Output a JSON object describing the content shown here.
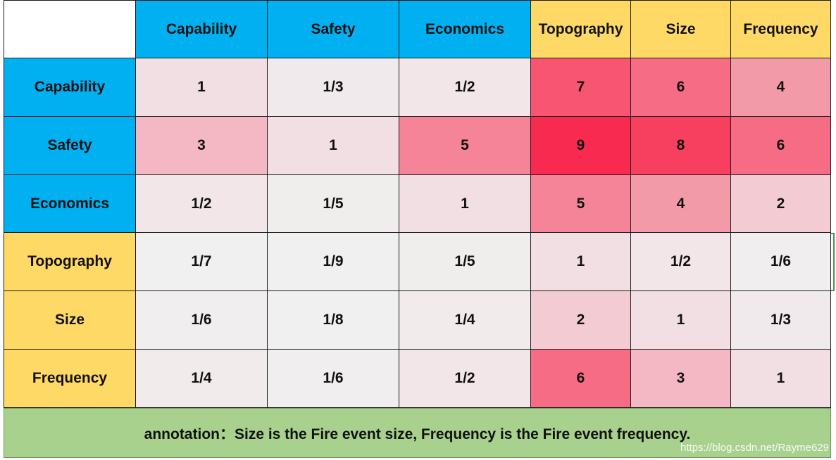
{
  "columns": [
    {
      "label": "Capability",
      "group": "blue"
    },
    {
      "label": "Safety",
      "group": "blue"
    },
    {
      "label": "Economics",
      "group": "blue"
    },
    {
      "label": "Topography",
      "group": "yellow"
    },
    {
      "label": "Size",
      "group": "yellow"
    },
    {
      "label": "Frequency",
      "group": "yellow"
    }
  ],
  "rows": [
    {
      "label": "Capability",
      "group": "blue",
      "cells": [
        {
          "text": "1",
          "color": "#f2dfe3"
        },
        {
          "text": "1/3",
          "color": "#f1eaec"
        },
        {
          "text": "1/2",
          "color": "#f2e6e9"
        },
        {
          "text": "7",
          "color": "#f75572"
        },
        {
          "text": "6",
          "color": "#f76c85"
        },
        {
          "text": "4",
          "color": "#f39aa9"
        }
      ]
    },
    {
      "label": "Safety",
      "group": "blue",
      "cells": [
        {
          "text": "3",
          "color": "#f4b8c4"
        },
        {
          "text": "1",
          "color": "#f2dfe3"
        },
        {
          "text": "5",
          "color": "#f58499"
        },
        {
          "text": "9",
          "color": "#f92a50"
        },
        {
          "text": "8",
          "color": "#f7405f"
        },
        {
          "text": "6",
          "color": "#f76c85"
        }
      ]
    },
    {
      "label": "Economics",
      "group": "blue",
      "cells": [
        {
          "text": "1/2",
          "color": "#f2e6e9"
        },
        {
          "text": "1/5",
          "color": "#f0eded"
        },
        {
          "text": "1",
          "color": "#f2dfe3"
        },
        {
          "text": "5",
          "color": "#f58499"
        },
        {
          "text": "4",
          "color": "#f39aa9"
        },
        {
          "text": "2",
          "color": "#f2cbd3"
        }
      ]
    },
    {
      "label": "Topography",
      "group": "yellow",
      "cells": [
        {
          "text": "1/7",
          "color": "#f0f0f0"
        },
        {
          "text": "1/9",
          "color": "#f0f0f0"
        },
        {
          "text": "1/5",
          "color": "#f0eded"
        },
        {
          "text": "1",
          "color": "#f2dfe3"
        },
        {
          "text": "1/2",
          "color": "#f2e6e9"
        },
        {
          "text": "1/6",
          "color": "#f0eeee"
        }
      ]
    },
    {
      "label": "Size",
      "group": "yellow",
      "cells": [
        {
          "text": "1/6",
          "color": "#f0eeee"
        },
        {
          "text": "1/8",
          "color": "#f0f0f0"
        },
        {
          "text": "1/4",
          "color": "#f1ebec"
        },
        {
          "text": "2",
          "color": "#f2cbd3"
        },
        {
          "text": "1",
          "color": "#f2dfe3"
        },
        {
          "text": "1/3",
          "color": "#f1eaec"
        }
      ]
    },
    {
      "label": "Frequency",
      "group": "yellow",
      "cells": [
        {
          "text": "1/4",
          "color": "#f1ebec"
        },
        {
          "text": "1/6",
          "color": "#f0eeee"
        },
        {
          "text": "1/2",
          "color": "#f2e6e9"
        },
        {
          "text": "6",
          "color": "#f76c85"
        },
        {
          "text": "3",
          "color": "#f4b8c4"
        },
        {
          "text": "1",
          "color": "#f2dfe3"
        }
      ]
    }
  ],
  "group_colors": {
    "blue": "#00b0f0",
    "yellow": "#ffd966"
  },
  "annotation": "annotation：Size is the Fire event size, Frequency is the Fire event frequency.",
  "watermark": "https://blog.csdn.net/Rayme629"
}
